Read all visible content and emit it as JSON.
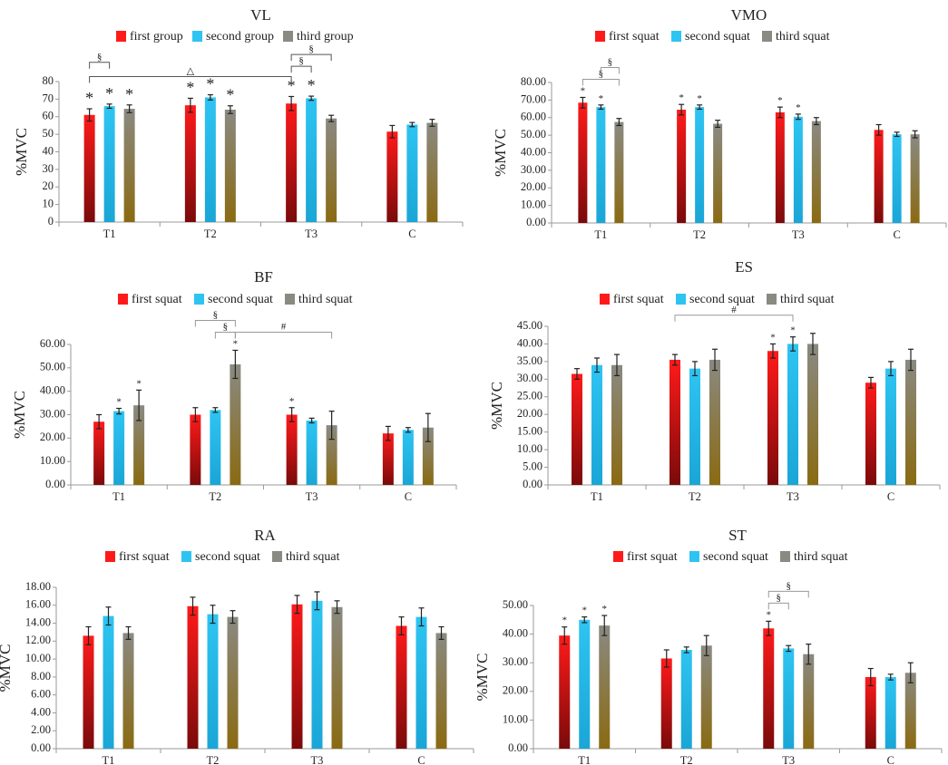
{
  "colors": {
    "series_top": [
      "#ff1a1a",
      "#2ec4f2",
      "#8a8a82"
    ],
    "series_bottom": [
      "#7a0a0a",
      "#1aa6d6",
      "#8a6a12"
    ],
    "axis": "#9a9a9a",
    "text": "#222222",
    "bracket": "#555555",
    "bracket_light": "#999999",
    "error_bar": "#222222"
  },
  "chart_data": [
    {
      "id": "VL",
      "type": "bar",
      "title": "VL",
      "ylabel": "%MVC",
      "xlabel": "",
      "categories": [
        "T1",
        "T2",
        "T3",
        "C"
      ],
      "ylim": [
        0,
        80
      ],
      "yticks": [
        0,
        10,
        20,
        30,
        40,
        50,
        60,
        70,
        80
      ],
      "tick_decimals": 0,
      "legend": [
        "first group",
        "second group",
        "third group"
      ],
      "series": [
        {
          "name": "first group",
          "values": [
            61,
            66.5,
            67.5,
            51.5
          ],
          "errors": [
            3.5,
            4,
            4,
            3.5
          ]
        },
        {
          "name": "second group",
          "values": [
            66,
            71,
            70.5,
            55.5
          ],
          "errors": [
            1.2,
            1.5,
            1.2,
            1.2
          ]
        },
        {
          "name": "third group",
          "values": [
            64.5,
            64,
            59,
            56.5
          ],
          "errors": [
            2.2,
            2.2,
            1.8,
            2
          ]
        }
      ],
      "significance_marks": [
        {
          "category": 0,
          "series": 0,
          "symbol": "*"
        },
        {
          "category": 0,
          "series": 1,
          "symbol": "*"
        },
        {
          "category": 0,
          "series": 2,
          "symbol": "*"
        },
        {
          "category": 1,
          "series": 0,
          "symbol": "*"
        },
        {
          "category": 1,
          "series": 1,
          "symbol": "*"
        },
        {
          "category": 1,
          "series": 2,
          "symbol": "*"
        },
        {
          "category": 2,
          "series": 0,
          "symbol": "*"
        },
        {
          "category": 2,
          "series": 1,
          "symbol": "*"
        }
      ],
      "comparisons": [
        {
          "from": [
            0,
            0
          ],
          "to": [
            0,
            1
          ],
          "symbol": "§",
          "level": 2
        },
        {
          "from": [
            0,
            0
          ],
          "to": [
            2,
            0
          ],
          "symbol": "△",
          "level": 0
        },
        {
          "from": [
            2,
            0
          ],
          "to": [
            2,
            1
          ],
          "symbol": "§",
          "level": 1
        },
        {
          "from": [
            2,
            0
          ],
          "to": [
            2,
            2
          ],
          "symbol": "§",
          "level": 2
        }
      ]
    },
    {
      "id": "VMO",
      "type": "bar",
      "title": "VMO",
      "ylabel": "%MVC",
      "xlabel": "",
      "categories": [
        "T1",
        "T2",
        "T3",
        "C"
      ],
      "ylim": [
        0,
        80
      ],
      "yticks": [
        0,
        10,
        20,
        30,
        40,
        50,
        60,
        70,
        80
      ],
      "tick_decimals": 2,
      "legend": [
        "first squat",
        "second squat",
        "third squat"
      ],
      "series": [
        {
          "name": "first squat",
          "values": [
            68.5,
            64.5,
            63,
            53
          ],
          "errors": [
            3,
            3,
            3,
            3
          ]
        },
        {
          "name": "second squat",
          "values": [
            66,
            66,
            60.5,
            50.5
          ],
          "errors": [
            1.2,
            1.2,
            1.5,
            1.2
          ]
        },
        {
          "name": "third squat",
          "values": [
            57.5,
            56.5,
            58,
            50.5
          ],
          "errors": [
            2,
            2,
            2,
            2
          ]
        }
      ],
      "significance_marks": [
        {
          "category": 0,
          "series": 0,
          "symbol": "*"
        },
        {
          "category": 0,
          "series": 1,
          "symbol": "*"
        },
        {
          "category": 1,
          "series": 0,
          "symbol": "*"
        },
        {
          "category": 1,
          "series": 1,
          "symbol": "*"
        },
        {
          "category": 2,
          "series": 0,
          "symbol": "*"
        },
        {
          "category": 2,
          "series": 1,
          "symbol": "*"
        }
      ],
      "comparisons": [
        {
          "from": [
            0,
            0
          ],
          "to": [
            0,
            2
          ],
          "symbol": "§",
          "level": 0
        },
        {
          "from": [
            0,
            1
          ],
          "to": [
            0,
            2
          ],
          "symbol": "§",
          "level": 1
        }
      ]
    },
    {
      "id": "BF",
      "type": "bar",
      "title": "BF",
      "ylabel": "%MVC",
      "xlabel": "",
      "categories": [
        "T1",
        "T2",
        "T3",
        "C"
      ],
      "ylim": [
        0,
        60
      ],
      "yticks": [
        0,
        10,
        20,
        30,
        40,
        50,
        60
      ],
      "tick_decimals": 2,
      "legend": [
        "first squat",
        "second squat",
        "third squat"
      ],
      "series": [
        {
          "name": "first squat",
          "values": [
            27,
            30,
            30,
            22
          ],
          "errors": [
            3,
            3,
            3,
            3
          ]
        },
        {
          "name": "second squat",
          "values": [
            31.5,
            32,
            27.5,
            23.5
          ],
          "errors": [
            1.2,
            1,
            1,
            1
          ]
        },
        {
          "name": "third squat",
          "values": [
            34,
            51.5,
            25.5,
            24.5
          ],
          "errors": [
            6.5,
            6,
            6,
            6
          ]
        }
      ],
      "significance_marks": [
        {
          "category": 0,
          "series": 1,
          "symbol": "*"
        },
        {
          "category": 0,
          "series": 2,
          "symbol": "*"
        },
        {
          "category": 1,
          "series": 2,
          "symbol": "*"
        },
        {
          "category": 2,
          "series": 0,
          "symbol": "*"
        }
      ],
      "comparisons": [
        {
          "from": [
            1,
            0
          ],
          "to": [
            1,
            2
          ],
          "symbol": "§",
          "level": 1
        },
        {
          "from": [
            1,
            1
          ],
          "to": [
            1,
            2
          ],
          "symbol": "§",
          "level": 0
        },
        {
          "from": [
            1,
            2
          ],
          "to": [
            2,
            2
          ],
          "symbol": "#",
          "level": 0
        }
      ]
    },
    {
      "id": "ES",
      "type": "bar",
      "title": "ES",
      "ylabel": "%MVC",
      "xlabel": "",
      "categories": [
        "T1",
        "T2",
        "T3",
        "C"
      ],
      "ylim": [
        0,
        45
      ],
      "yticks": [
        0,
        5,
        10,
        15,
        20,
        25,
        30,
        35,
        40,
        45
      ],
      "tick_decimals": 2,
      "legend": [
        "first squat",
        "second squat",
        "third squat"
      ],
      "series": [
        {
          "name": "first squat",
          "values": [
            31.5,
            35.5,
            38,
            29
          ],
          "errors": [
            1.5,
            1.5,
            2,
            1.5
          ]
        },
        {
          "name": "second squat",
          "values": [
            34,
            33,
            40,
            33
          ],
          "errors": [
            2,
            2,
            2,
            2
          ]
        },
        {
          "name": "third squat",
          "values": [
            34,
            35.5,
            40,
            35.5
          ],
          "errors": [
            3,
            3,
            3,
            3
          ]
        }
      ],
      "significance_marks": [
        {
          "category": 2,
          "series": 0,
          "symbol": "*"
        },
        {
          "category": 2,
          "series": 1,
          "symbol": "*"
        }
      ],
      "comparisons": [
        {
          "from": [
            1,
            0
          ],
          "to": [
            2,
            1
          ],
          "symbol": "#",
          "level": 0
        }
      ]
    },
    {
      "id": "RA",
      "type": "bar",
      "title": "RA",
      "ylabel": "%MVC",
      "xlabel": "",
      "categories": [
        "T1",
        "T2",
        "T3",
        "C"
      ],
      "ylim": [
        0,
        18
      ],
      "yticks": [
        0,
        2,
        4,
        6,
        8,
        10,
        12,
        14,
        16,
        18
      ],
      "tick_decimals": 2,
      "legend": [
        "first squat",
        "second squat",
        "third squat"
      ],
      "series": [
        {
          "name": "first squat",
          "values": [
            12.6,
            15.9,
            16.1,
            13.7
          ],
          "errors": [
            1,
            1,
            1,
            1
          ]
        },
        {
          "name": "second squat",
          "values": [
            14.8,
            15,
            16.5,
            14.7
          ],
          "errors": [
            1,
            1,
            1,
            1
          ]
        },
        {
          "name": "third squat",
          "values": [
            12.9,
            14.7,
            15.8,
            12.9
          ],
          "errors": [
            0.7,
            0.7,
            0.7,
            0.7
          ]
        }
      ],
      "significance_marks": [],
      "comparisons": []
    },
    {
      "id": "ST",
      "type": "bar",
      "title": "ST",
      "ylabel": "%MVC",
      "xlabel": "",
      "categories": [
        "T1",
        "T2",
        "T3",
        "C"
      ],
      "ylim": [
        0,
        50
      ],
      "yticks": [
        0,
        10,
        20,
        30,
        40,
        50
      ],
      "tick_decimals": 2,
      "legend": [
        "first squat",
        "second squat",
        "third squat"
      ],
      "series": [
        {
          "name": "first squat",
          "values": [
            39.5,
            31.5,
            42,
            25
          ],
          "errors": [
            3,
            3,
            2.5,
            3
          ]
        },
        {
          "name": "second squat",
          "values": [
            45,
            34.5,
            35,
            25
          ],
          "errors": [
            1,
            1,
            1,
            1
          ]
        },
        {
          "name": "third squat",
          "values": [
            43,
            36,
            33,
            26.5
          ],
          "errors": [
            3.5,
            3.5,
            3.5,
            3.5
          ]
        }
      ],
      "significance_marks": [
        {
          "category": 0,
          "series": 0,
          "symbol": "*"
        },
        {
          "category": 0,
          "series": 1,
          "symbol": "*"
        },
        {
          "category": 0,
          "series": 2,
          "symbol": "*"
        },
        {
          "category": 2,
          "series": 0,
          "symbol": "*"
        }
      ],
      "comparisons": [
        {
          "from": [
            2,
            0
          ],
          "to": [
            2,
            1
          ],
          "symbol": "§",
          "level": 0
        },
        {
          "from": [
            2,
            0
          ],
          "to": [
            2,
            2
          ],
          "symbol": "§",
          "level": 1
        }
      ]
    }
  ]
}
